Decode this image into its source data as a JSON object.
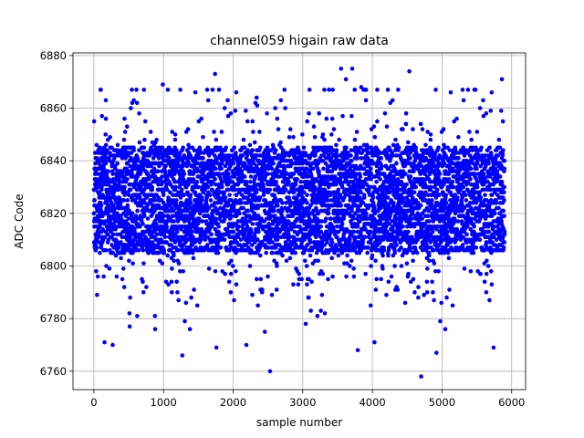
{
  "chart_data": {
    "type": "scatter",
    "title": "channel059 higain raw data",
    "xlabel": "sample number",
    "ylabel": "ADC Code",
    "xlim": [
      -300,
      6200
    ],
    "ylim": [
      6753,
      6881
    ],
    "x_ticks": [
      0,
      1000,
      2000,
      3000,
      4000,
      5000,
      6000
    ],
    "y_ticks": [
      6760,
      6780,
      6800,
      6820,
      6840,
      6860,
      6880
    ],
    "grid": true,
    "marker_color": "#0000ff",
    "sample_count": 5900,
    "sample_step": 1,
    "distribution": {
      "core_range": [
        6805,
        6845
      ],
      "center": 6825,
      "min": 6758,
      "max": 6875
    },
    "outliers": [
      {
        "x": 4700,
        "y": 6758
      },
      {
        "x": 2530,
        "y": 6760
      },
      {
        "x": 1270,
        "y": 6766
      },
      {
        "x": 3790,
        "y": 6768
      },
      {
        "x": 1760,
        "y": 6769
      },
      {
        "x": 5740,
        "y": 6769
      },
      {
        "x": 2190,
        "y": 6770
      },
      {
        "x": 270,
        "y": 6770
      },
      {
        "x": 4030,
        "y": 6771
      },
      {
        "x": 4920,
        "y": 6767
      },
      {
        "x": 3550,
        "y": 6875
      },
      {
        "x": 3710,
        "y": 6875
      },
      {
        "x": 4530,
        "y": 6874
      },
      {
        "x": 1740,
        "y": 6873
      },
      {
        "x": 3620,
        "y": 6871
      },
      {
        "x": 5860,
        "y": 6871
      },
      {
        "x": 990,
        "y": 6869
      },
      {
        "x": 3840,
        "y": 6868
      },
      {
        "x": 100,
        "y": 6867
      },
      {
        "x": 5480,
        "y": 6867
      }
    ]
  }
}
